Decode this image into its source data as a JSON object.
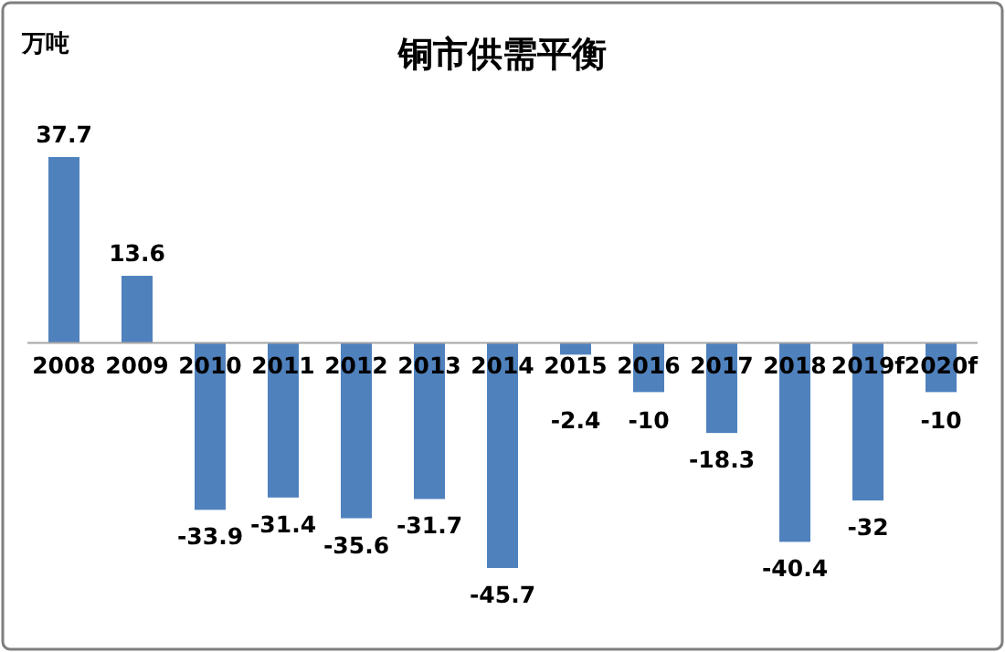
{
  "chart_data": {
    "type": "bar",
    "title": "铜市供需平衡",
    "ylabel": "万吨",
    "categories": [
      "2008",
      "2009",
      "2010",
      "2011",
      "2012",
      "2013",
      "2014",
      "2015",
      "2016",
      "2017",
      "2018",
      "2019f",
      "2020f"
    ],
    "values": [
      37.7,
      13.6,
      -33.9,
      -31.4,
      -35.6,
      -31.7,
      -45.7,
      -2.4,
      -10,
      -18.3,
      -40.4,
      -32,
      -10
    ],
    "color": "#4f81bd",
    "data_labels": true
  }
}
